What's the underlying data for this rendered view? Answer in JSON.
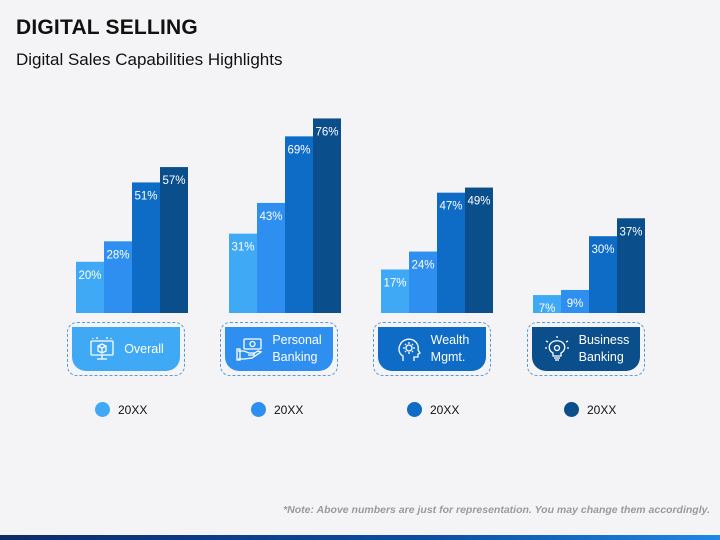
{
  "title": "DIGITAL SELLING",
  "subtitle": "Digital Sales Capabilities Highlights",
  "note": "*Note: Above numbers are just for representation. You may change them accordingly.",
  "colors": {
    "shade1": "#3fa9f5",
    "shade2": "#2e8ff0",
    "shade3": "#0e6bc6",
    "shade4": "#0b4e8c"
  },
  "chart_data": {
    "type": "bar",
    "title": "",
    "xlabel": "",
    "ylabel": "",
    "ylim": [
      0,
      80
    ],
    "categories": [
      "Overall",
      "Personal Banking",
      "Wealth Mgmt.",
      "Business Banking"
    ],
    "series": [
      {
        "values": [
          20,
          31,
          17,
          7
        ]
      },
      {
        "values": [
          28,
          43,
          24,
          9
        ]
      },
      {
        "values": [
          51,
          69,
          47,
          30
        ]
      },
      {
        "values": [
          57,
          76,
          49,
          37
        ]
      }
    ],
    "value_suffix": "%"
  },
  "cards": [
    {
      "line1": "Overall",
      "line2": "",
      "icon": "monitor-box-icon"
    },
    {
      "line1": "Personal",
      "line2": "Banking",
      "icon": "money-hand-icon"
    },
    {
      "line1": "Wealth",
      "line2": "Mgmt.",
      "icon": "gear-head-icon"
    },
    {
      "line1": "Business",
      "line2": "Banking",
      "icon": "bulb-gear-icon"
    }
  ],
  "legend": [
    {
      "label": "20XX"
    },
    {
      "label": "20XX"
    },
    {
      "label": "20XX"
    },
    {
      "label": "20XX"
    }
  ]
}
